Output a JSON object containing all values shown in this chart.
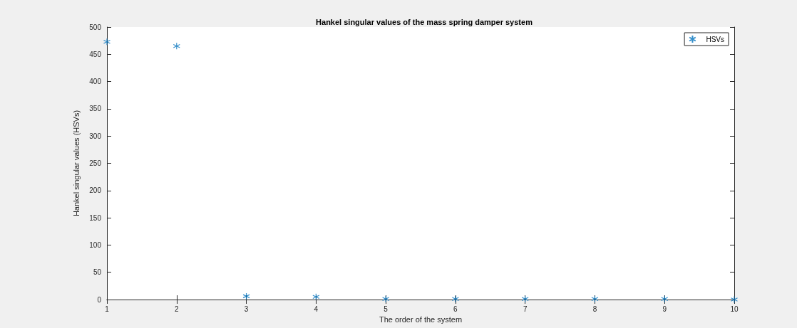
{
  "chart_data": {
    "type": "scatter",
    "title": "Hankel singular values of the mass spring damper system",
    "xlabel": "The order of the system",
    "ylabel": "Hankel singular values (HSVs)",
    "x": [
      1,
      2,
      3,
      4,
      5,
      6,
      7,
      8,
      9,
      10
    ],
    "series": [
      {
        "name": "HSVs",
        "color": "#0072bd",
        "values": [
          473,
          465,
          6,
          5,
          1,
          1,
          1,
          1,
          1,
          0
        ]
      }
    ],
    "xlim": [
      1,
      10
    ],
    "xticks": [
      1,
      2,
      3,
      4,
      5,
      6,
      7,
      8,
      9,
      10
    ],
    "ylim": [
      0,
      500
    ],
    "yticks": [
      0,
      50,
      100,
      150,
      200,
      250,
      300,
      350,
      400,
      450,
      500
    ],
    "marker": "cross",
    "legend": "top right",
    "grid": false
  }
}
